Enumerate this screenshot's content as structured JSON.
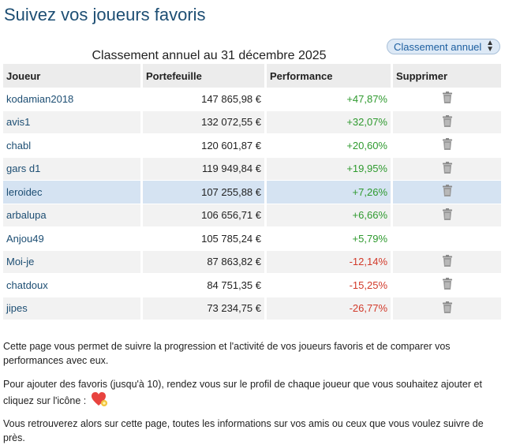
{
  "page_title": "Suivez vos joueurs favoris",
  "ranking_select": {
    "selected": "Classement annuel"
  },
  "table_title": "Classement annuel au 31 décembre 2025",
  "columns": [
    "Joueur",
    "Portefeuille",
    "Performance",
    "Supprimer"
  ],
  "rows": [
    {
      "player": "kodamian2018",
      "portfolio": "147 865,98 €",
      "performance": "+47,87%",
      "trend": "positive",
      "deletable": true
    },
    {
      "player": "avis1",
      "portfolio": "132 072,55 €",
      "performance": "+32,07%",
      "trend": "positive",
      "deletable": true
    },
    {
      "player": "chabl",
      "portfolio": "120 601,87 €",
      "performance": "+20,60%",
      "trend": "positive",
      "deletable": true
    },
    {
      "player": "gars d1",
      "portfolio": "119 949,84 €",
      "performance": "+19,95%",
      "trend": "positive",
      "deletable": true
    },
    {
      "player": "leroidec",
      "portfolio": "107 255,88 €",
      "performance": "+7,26%",
      "trend": "positive",
      "deletable": true,
      "highlighted": true
    },
    {
      "player": "arbalupa",
      "portfolio": "106 656,71 €",
      "performance": "+6,66%",
      "trend": "positive",
      "deletable": true
    },
    {
      "player": "Anjou49",
      "portfolio": "105 785,24 €",
      "performance": "+5,79%",
      "trend": "positive",
      "deletable": false
    },
    {
      "player": "Moi-je",
      "portfolio": "87 863,82 €",
      "performance": "-12,14%",
      "trend": "negative",
      "deletable": true
    },
    {
      "player": "chatdoux",
      "portfolio": "84 751,35 €",
      "performance": "-15,25%",
      "trend": "negative",
      "deletable": true
    },
    {
      "player": "jipes",
      "portfolio": "73 234,75 €",
      "performance": "-26,77%",
      "trend": "negative",
      "deletable": true
    }
  ],
  "info": {
    "paragraph1": "Cette page vous permet de suivre la progression et l'activité de vos joueurs favoris et de comparer vos performances avec eux.",
    "paragraph2": "Pour ajouter des favoris (jusqu'à 10), rendez vous sur le profil de chaque joueur que vous souhaitez ajouter et cliquez sur l'icône :",
    "paragraph3": "Vous retrouverez alors sur cette page, toutes les informations sur vos amis ou ceux que vous voulez suivre de près."
  },
  "icons": {
    "delete": "trash-icon",
    "favorite": "heart-icon",
    "select": "chevron-updown-icon"
  },
  "colors": {
    "title": "#1d4e73",
    "positive": "#2f9a2f",
    "negative": "#d23a2a",
    "highlight_row": "#d5e3f2",
    "select_bg": "#dde9f6"
  }
}
